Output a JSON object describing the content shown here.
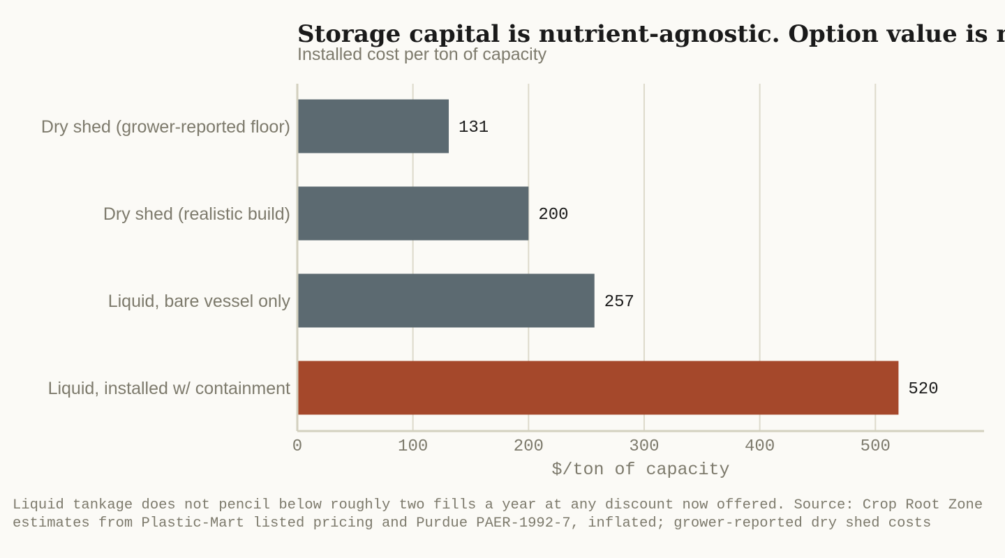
{
  "chart_data": {
    "type": "bar",
    "orientation": "horizontal",
    "title": "Storage capital is nutrient-agnostic. Option value is not.",
    "subtitle": "Installed cost per ton of capacity",
    "categories": [
      "Dry shed (grower-reported floor)",
      "Dry shed (realistic build)",
      "Liquid, bare vessel only",
      "Liquid, installed w/ containment"
    ],
    "values": [
      131,
      200,
      257,
      520
    ],
    "value_labels": [
      "131",
      "200",
      "257",
      "520"
    ],
    "xlabel": "$/ton of capacity",
    "ylabel": "",
    "xlim": [
      0,
      594
    ],
    "xticks": [
      0,
      100,
      200,
      300,
      400,
      500
    ],
    "xtick_labels": [
      "0",
      "100",
      "200",
      "300",
      "400",
      "500"
    ],
    "grid": "vertical",
    "legend": "none",
    "colors": {
      "default_bar": "#5c6a71",
      "highlight_bar": "#a5482b",
      "grid": "#dddacb",
      "axis": "#d3d0bf"
    },
    "highlight_index": 3
  },
  "footnote": {
    "text": "Liquid tankage does not pencil below roughly two fills a year at any discount now offered.   Source: Crop Root Zone estimates from Plastic-Mart listed pricing and Purdue PAER-1992-7, inflated; grower-reported dry shed costs"
  }
}
